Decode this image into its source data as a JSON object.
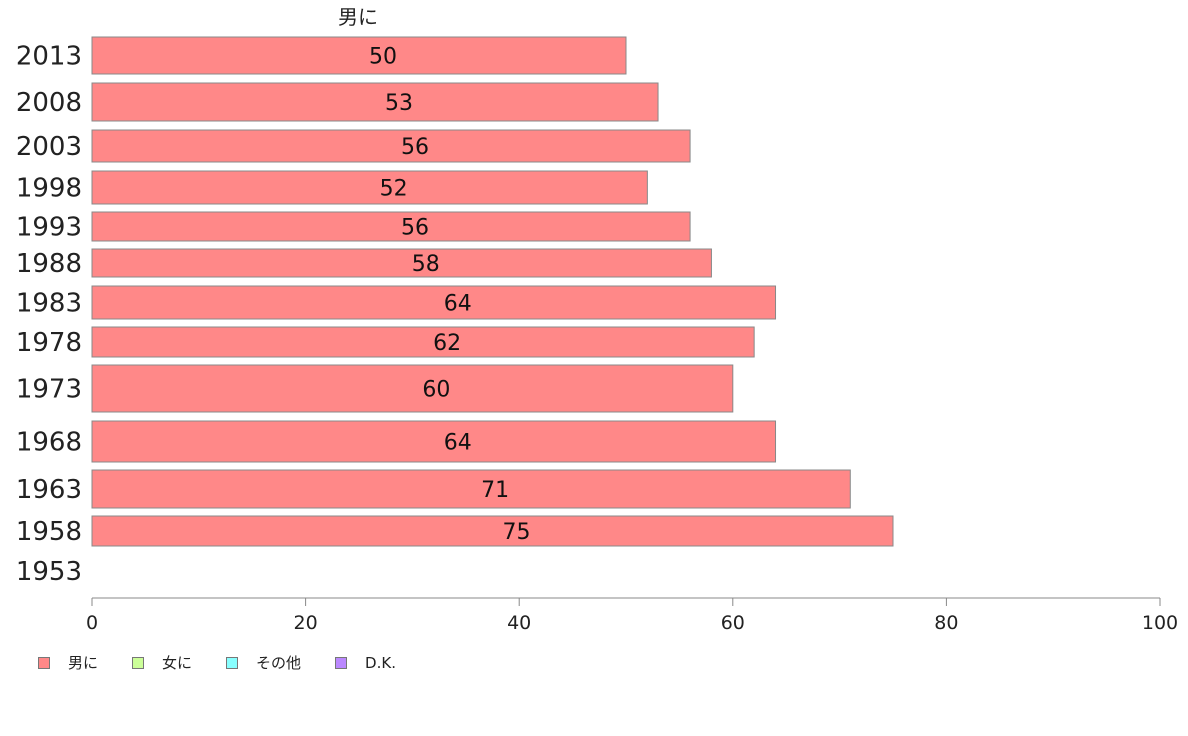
{
  "chart_data": {
    "type": "bar",
    "orientation": "horizontal",
    "top_label": "男に",
    "categories": [
      "2013",
      "2008",
      "2003",
      "1998",
      "1993",
      "1988",
      "1983",
      "1978",
      "1973",
      "1968",
      "1963",
      "1958",
      "1953"
    ],
    "series": [
      {
        "name": "男に",
        "color": "#ff8888",
        "values": [
          50,
          53,
          56,
          52,
          56,
          58,
          64,
          62,
          60,
          64,
          71,
          75,
          null
        ]
      }
    ],
    "xlim": [
      0,
      100
    ],
    "xticks": [
      0,
      20,
      40,
      60,
      80,
      100
    ],
    "legend": {
      "placement": "bottom-left",
      "items": [
        {
          "label": "男に",
          "color": "#ff8888"
        },
        {
          "label": "女に",
          "color": "#ccff99"
        },
        {
          "label": "その他",
          "color": "#88ffff"
        },
        {
          "label": "D.K.",
          "color": "#bb88ff"
        }
      ]
    },
    "grid": false
  }
}
